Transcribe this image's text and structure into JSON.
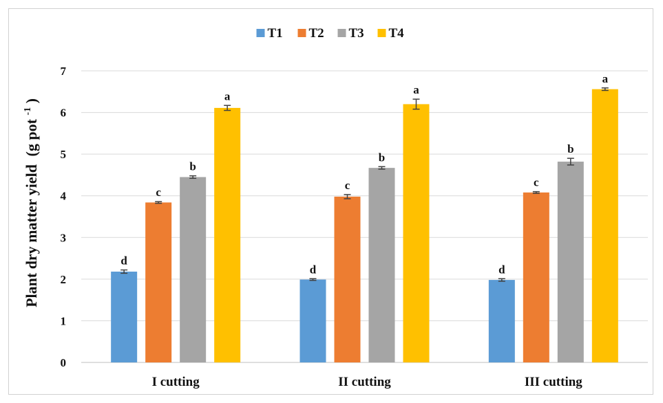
{
  "chart_data": {
    "type": "bar",
    "title": "",
    "ylabel": "Plant dry matter yield",
    "ylabel_unit_main": "(g pot",
    "ylabel_unit_sup": "-1",
    "ylabel_unit_end": ")",
    "xlabel": "",
    "ylim": [
      0,
      7
    ],
    "yticks": [
      "0",
      "1",
      "2",
      "3",
      "4",
      "5",
      "6",
      "7"
    ],
    "grid": true,
    "legend_position": "top-center",
    "categories": [
      "I cutting",
      "II cutting",
      "III cutting"
    ],
    "series": [
      {
        "name": "T1",
        "color": "#5B9BD5",
        "values": [
          2.18,
          1.99,
          1.98
        ],
        "errors": [
          0.04,
          0.02,
          0.03
        ],
        "letters": [
          "d",
          "d",
          "d"
        ]
      },
      {
        "name": "T2",
        "color": "#ED7D31",
        "values": [
          3.84,
          3.98,
          4.08
        ],
        "errors": [
          0.02,
          0.05,
          0.02
        ],
        "letters": [
          "c",
          "c",
          "c"
        ]
      },
      {
        "name": "T3",
        "color": "#A5A5A5",
        "values": [
          4.45,
          4.67,
          4.82
        ],
        "errors": [
          0.03,
          0.03,
          0.08
        ],
        "letters": [
          "b",
          "b",
          "b"
        ]
      },
      {
        "name": "T4",
        "color": "#FFC000",
        "values": [
          6.11,
          6.2,
          6.56
        ],
        "errors": [
          0.06,
          0.12,
          0.03
        ],
        "letters": [
          "a",
          "a",
          "a"
        ]
      }
    ]
  }
}
